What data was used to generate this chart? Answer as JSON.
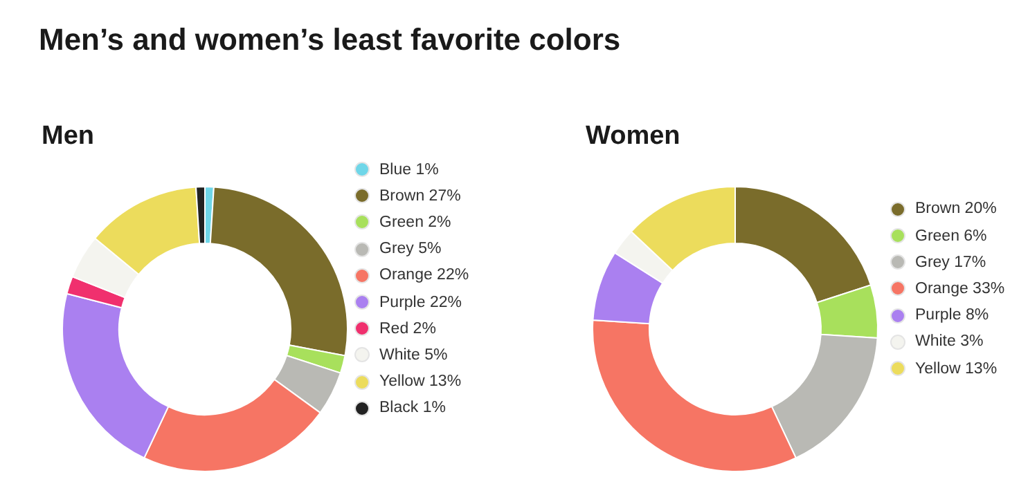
{
  "chart_data": [
    {
      "type": "donut",
      "title": "Men’s and women’s least favorite colors",
      "subtitle": "Men",
      "legend": "right",
      "categories": [
        "Blue",
        "Brown",
        "Green",
        "Grey",
        "Orange",
        "Purple",
        "Red",
        "White",
        "Yellow",
        "Black"
      ],
      "values": [
        1,
        27,
        2,
        5,
        22,
        22,
        2,
        5,
        13,
        1
      ],
      "value_labels": [
        "1%",
        "27%",
        "2%",
        "5%",
        "22%",
        "22%",
        "2%",
        "5%",
        "13%",
        "1%"
      ],
      "colors": [
        "#6fd6e8",
        "#7a6c2b",
        "#a8e05c",
        "#b9b9b4",
        "#f67564",
        "#aa80f0",
        "#f0306e",
        "#f4f4ef",
        "#ecdc5c",
        "#222222"
      ]
    },
    {
      "type": "donut",
      "subtitle": "Women",
      "legend": "right",
      "categories": [
        "Brown",
        "Green",
        "Grey",
        "Orange",
        "Purple",
        "White",
        "Yellow"
      ],
      "values": [
        20,
        6,
        17,
        33,
        8,
        3,
        13
      ],
      "value_labels": [
        "20%",
        "6%",
        "17%",
        "33%",
        "8%",
        "3%",
        "13%"
      ],
      "colors": [
        "#7a6c2b",
        "#a8e05c",
        "#b9b9b4",
        "#f67564",
        "#aa80f0",
        "#f4f4ef",
        "#ecdc5c"
      ]
    }
  ]
}
